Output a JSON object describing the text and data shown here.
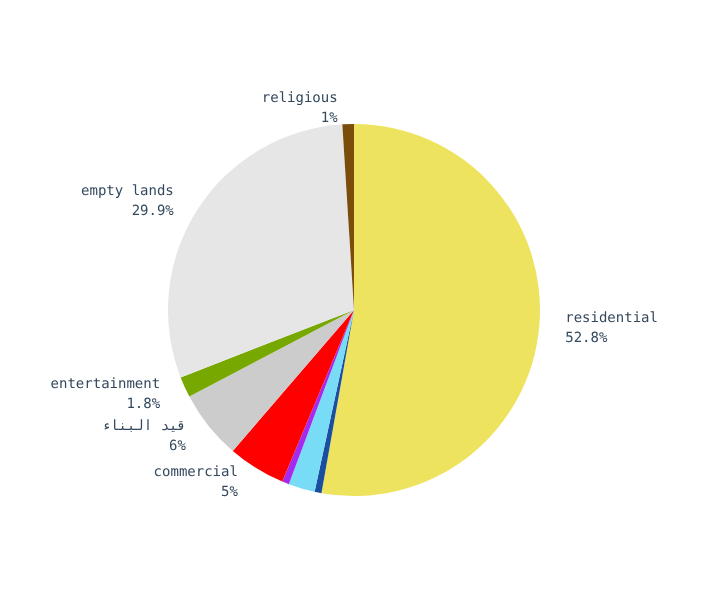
{
  "chart_data": {
    "type": "pie",
    "categories": [
      "residential",
      null,
      null,
      null,
      "commercial",
      "قيد البناء",
      "entertainment",
      "empty lands",
      "religious"
    ],
    "values": [
      52.8,
      0.6,
      2.3,
      0.6,
      5,
      6,
      1.8,
      29.9,
      1
    ],
    "value_labels": [
      "52.8%",
      null,
      null,
      null,
      "5%",
      "6%",
      "1.8%",
      "29.9%",
      "1%"
    ],
    "colors": [
      "#ede35e",
      "#1a4fa0",
      "#79dcf7",
      "#a52af0",
      "#ff0000",
      "#cccccc",
      "#77a800",
      "#e6e6e6",
      "#7a4d0a"
    ],
    "legend": false
  }
}
